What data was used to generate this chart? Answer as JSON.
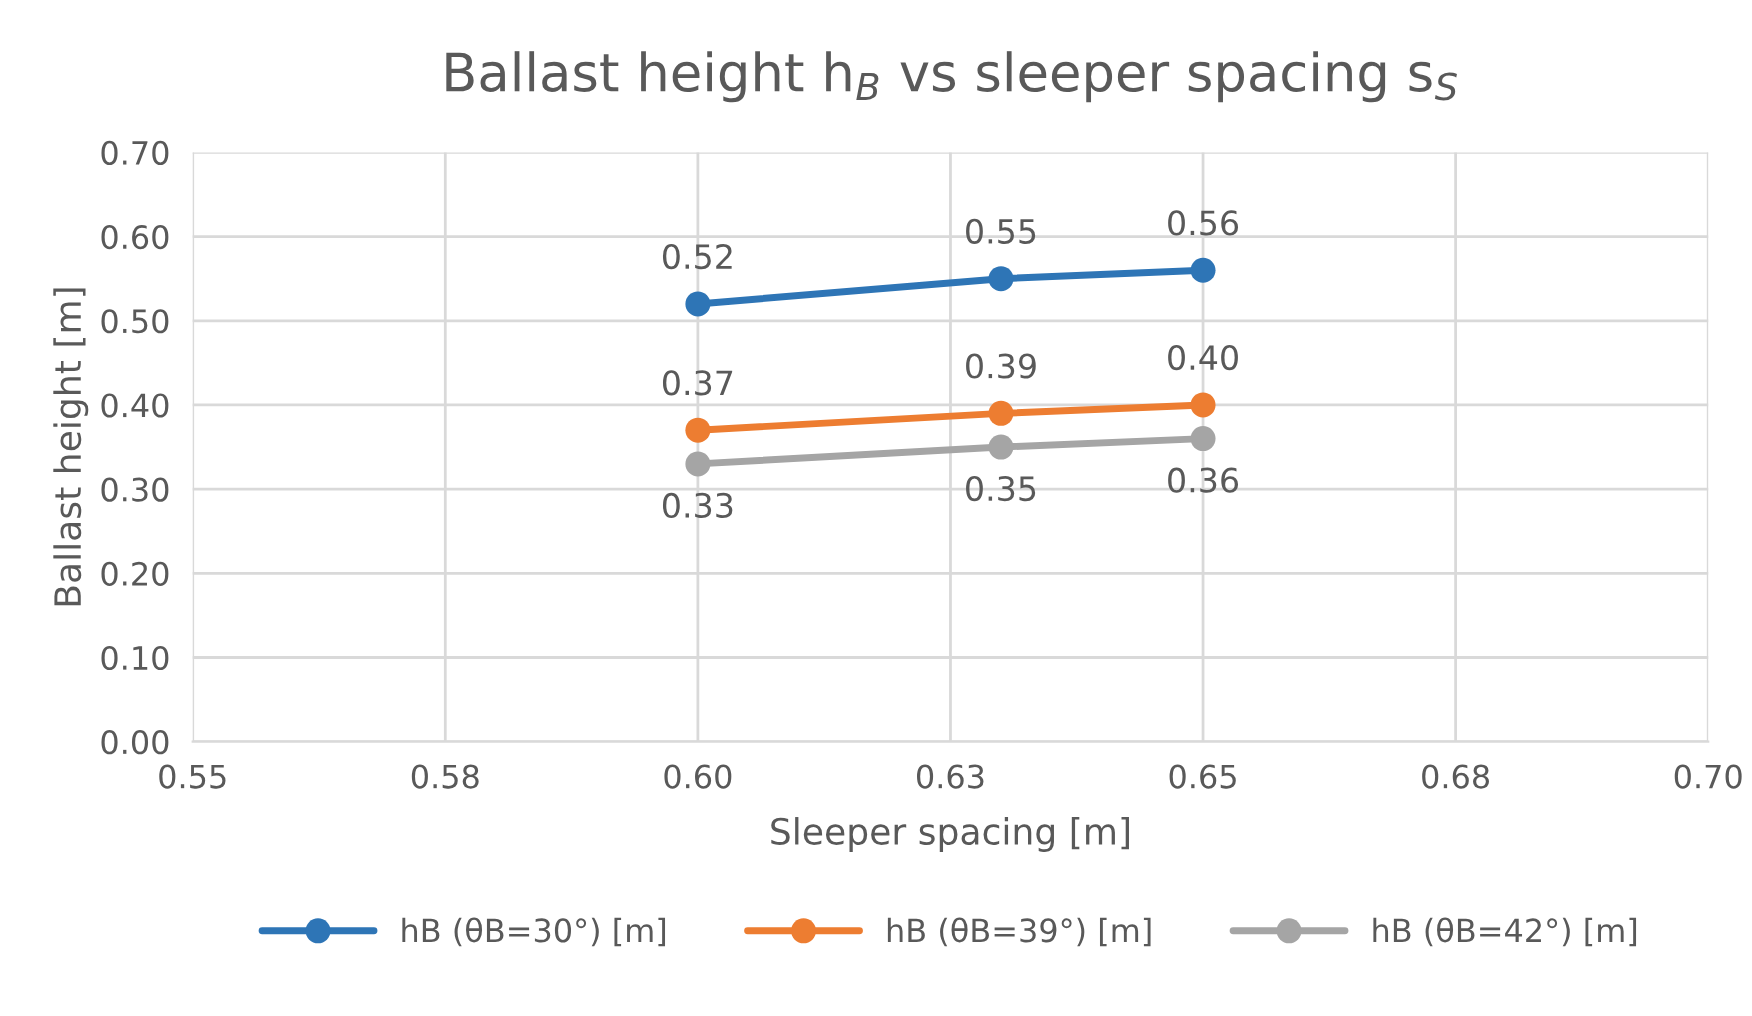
{
  "chart_data": {
    "type": "line",
    "title": "Ballast height h$_{B}$ vs sleeper spacing s$_{S}$",
    "xlabel": "Sleeper spacing [m]",
    "ylabel": "Ballast height [m]",
    "x": [
      0.6,
      0.63,
      0.65
    ],
    "series": [
      {
        "name": "hB (θB=30°) [m]",
        "color": "#2e75b6",
        "values": [
          0.52,
          0.55,
          0.56
        ],
        "value_labels": [
          "0.52",
          "0.55",
          "0.56"
        ]
      },
      {
        "name": "hB (θB=39°) [m]",
        "color": "#ed7d31",
        "values": [
          0.37,
          0.39,
          0.4
        ],
        "value_labels": [
          "0.37",
          "0.39",
          "0.40"
        ]
      },
      {
        "name": "hB (θB=42°) [m]",
        "color": "#a5a5a5",
        "values": [
          0.33,
          0.35,
          0.36
        ],
        "value_labels": [
          "0.33",
          "0.35",
          "0.36"
        ]
      }
    ],
    "xlim": [
      0.55,
      0.7
    ],
    "xticks": [
      {
        "value": 0.55,
        "label": "0.55"
      },
      {
        "value": 0.575,
        "label": "0.58"
      },
      {
        "value": 0.6,
        "label": "0.60"
      },
      {
        "value": 0.625,
        "label": "0.63"
      },
      {
        "value": 0.65,
        "label": "0.65"
      },
      {
        "value": 0.675,
        "label": "0.68"
      },
      {
        "value": 0.7,
        "label": "0.70"
      }
    ],
    "ylim": [
      0,
      0.7
    ],
    "yticks": [
      {
        "value": 0,
        "label": "0.00"
      },
      {
        "value": 0.1,
        "label": "0.10"
      },
      {
        "value": 0.2,
        "label": "0.20"
      },
      {
        "value": 0.3,
        "label": "0.30"
      },
      {
        "value": 0.4,
        "label": "0.40"
      },
      {
        "value": 0.5,
        "label": "0.50"
      },
      {
        "value": 0.6,
        "label": "0.60"
      },
      {
        "value": 0.7,
        "label": "0.70"
      }
    ],
    "grid": true,
    "legend": "bottom",
    "marker": "circle",
    "line_style": "solid"
  }
}
